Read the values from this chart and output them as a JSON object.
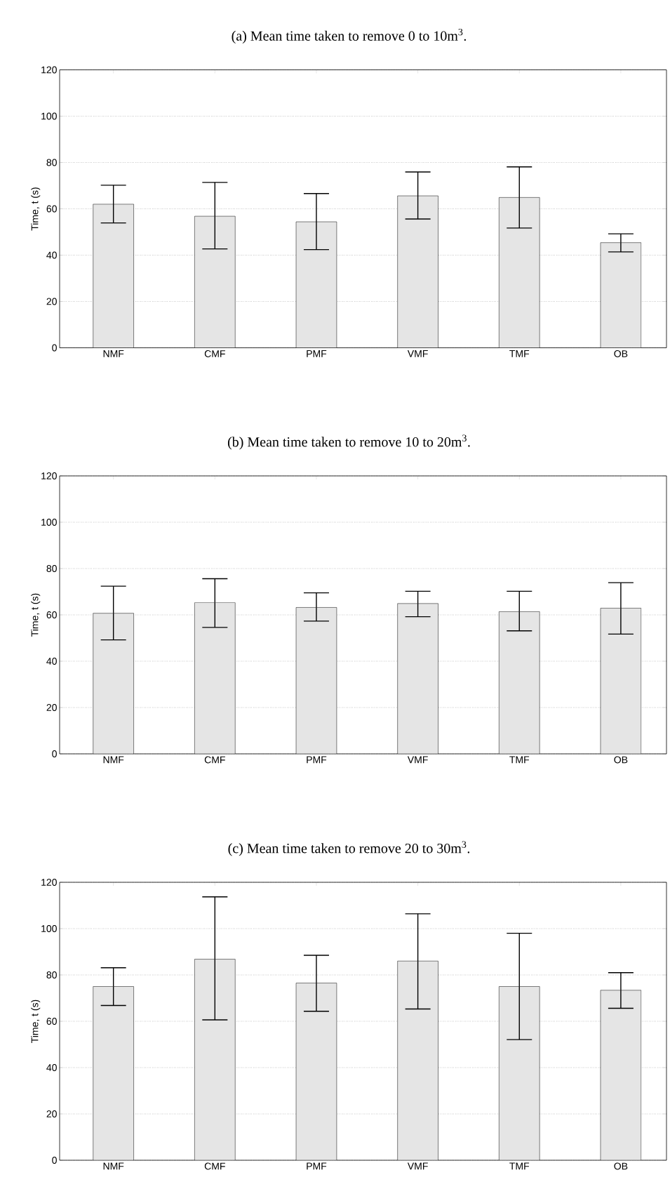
{
  "chart_data": [
    {
      "type": "bar",
      "title": "(a) Mean time taken to remove 0 to 10m$^{3}$.",
      "ylabel": "Time, t (s)",
      "categories": [
        "NMF",
        "CMF",
        "PMF",
        "VMF",
        "TMF",
        "OB"
      ],
      "values": [
        62.0,
        56.8,
        54.4,
        65.6,
        64.9,
        45.4
      ],
      "errors": [
        [
          53.9,
          70.2
        ],
        [
          42.7,
          71.4
        ],
        [
          42.4,
          66.6
        ],
        [
          55.6,
          75.9
        ],
        [
          51.7,
          78.1
        ],
        [
          41.4,
          49.2
        ]
      ],
      "color": "#e5e5e5",
      "ylim": [
        0,
        120
      ],
      "yticks": [
        0,
        20,
        40,
        60,
        80,
        100,
        120
      ],
      "grid": "y"
    },
    {
      "type": "bar",
      "title": "(b) Mean time taken to remove 10 to 20m$^{3}$.",
      "ylabel": "Time, t (s)",
      "categories": [
        "NMF",
        "CMF",
        "PMF",
        "VMF",
        "TMF",
        "OB"
      ],
      "values": [
        60.7,
        65.3,
        63.2,
        64.9,
        61.4,
        62.9
      ],
      "errors": [
        [
          49.2,
          72.4
        ],
        [
          54.6,
          75.6
        ],
        [
          57.3,
          69.5
        ],
        [
          59.2,
          70.2
        ],
        [
          53.1,
          70.2
        ],
        [
          51.7,
          73.9
        ]
      ],
      "color": "#e5e5e5",
      "ylim": [
        0,
        120
      ],
      "yticks": [
        0,
        20,
        40,
        60,
        80,
        100,
        120
      ],
      "grid": "y"
    },
    {
      "type": "bar",
      "title": "(c) Mean time taken to remove 20 to 30m$^{3}$.",
      "ylabel": "Time, t (s)",
      "categories": [
        "NMF",
        "CMF",
        "PMF",
        "VMF",
        "TMF",
        "OB"
      ],
      "values": [
        75.0,
        86.8,
        76.5,
        86.0,
        75.0,
        73.4
      ],
      "errors": [
        [
          66.8,
          83.1
        ],
        [
          60.6,
          113.7
        ],
        [
          64.3,
          88.5
        ],
        [
          65.3,
          106.4
        ],
        [
          52.1,
          98.0
        ],
        [
          65.6,
          81.0
        ]
      ],
      "color": "#e5e5e5",
      "ylim": [
        0,
        120
      ],
      "yticks": [
        0,
        20,
        40,
        60,
        80,
        100,
        120
      ],
      "grid": "y"
    }
  ]
}
